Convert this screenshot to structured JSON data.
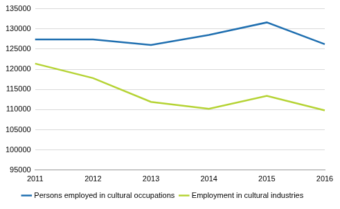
{
  "chart_data": {
    "type": "line",
    "categories": [
      "2011",
      "2012",
      "2013",
      "2014",
      "2015",
      "2016"
    ],
    "series": [
      {
        "name": "Persons employed in cultural occupations",
        "color": "#1f6fb0",
        "values": [
          127400,
          127400,
          126000,
          128500,
          131600,
          126200
        ]
      },
      {
        "name": "Employment in cultural industries",
        "color": "#b5d334",
        "values": [
          121400,
          117800,
          111900,
          110200,
          113400,
          109800
        ]
      }
    ],
    "ylim": [
      95000,
      135000
    ],
    "yticks": [
      95000,
      100000,
      105000,
      110000,
      115000,
      120000,
      125000,
      130000,
      135000
    ],
    "grid": true,
    "legend": "bottom"
  }
}
